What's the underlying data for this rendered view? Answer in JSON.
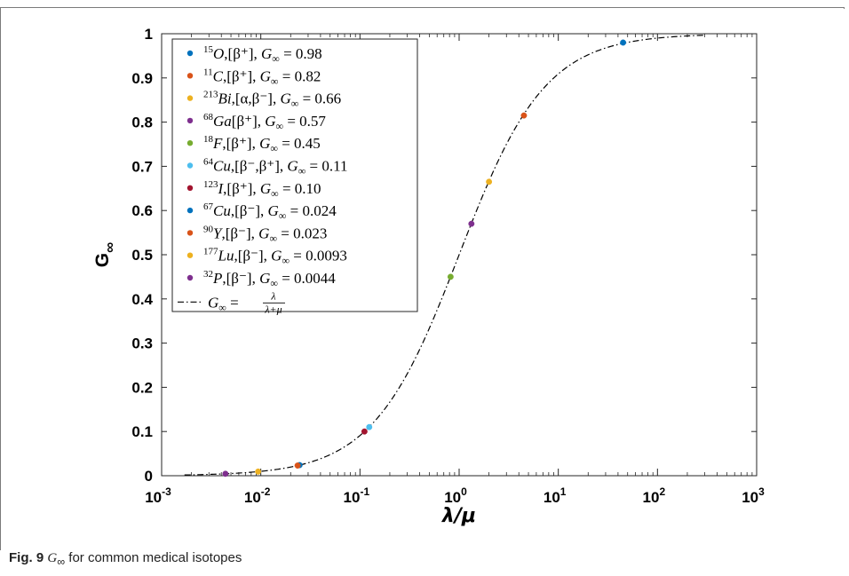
{
  "caption": {
    "fig_label": "Fig. 9",
    "symbol": "G",
    "symbol_sub": "∞",
    "text": " for common medical isotopes"
  },
  "chart_data": {
    "type": "scatter",
    "xscale": "log",
    "xlim": [
      0.001,
      1000
    ],
    "ylim": [
      0,
      1
    ],
    "xlabel": "λ/μ",
    "ylabel": "G",
    "ylabel_sub": "∞",
    "x_ticks": [
      {
        "value": 0.001,
        "base": "10",
        "exp": "-3"
      },
      {
        "value": 0.01,
        "base": "10",
        "exp": "-2"
      },
      {
        "value": 0.1,
        "base": "10",
        "exp": "-1"
      },
      {
        "value": 1,
        "base": "10",
        "exp": "0"
      },
      {
        "value": 10,
        "base": "10",
        "exp": "1"
      },
      {
        "value": 100,
        "base": "10",
        "exp": "2"
      },
      {
        "value": 1000,
        "base": "10",
        "exp": "3"
      }
    ],
    "y_ticks": [
      {
        "value": 0,
        "label": "0"
      },
      {
        "value": 0.1,
        "label": "0.1"
      },
      {
        "value": 0.2,
        "label": "0.2"
      },
      {
        "value": 0.3,
        "label": "0.3"
      },
      {
        "value": 0.4,
        "label": "0.4"
      },
      {
        "value": 0.5,
        "label": "0.5"
      },
      {
        "value": 0.6,
        "label": "0.6"
      },
      {
        "value": 0.7,
        "label": "0.7"
      },
      {
        "value": 0.8,
        "label": "0.8"
      },
      {
        "value": 0.9,
        "label": "0.9"
      },
      {
        "value": 1,
        "label": "1"
      }
    ],
    "grid": false,
    "legend_position": "top-left",
    "series": [
      {
        "name": "15O, [β+], G∞ = 0.98",
        "mass": "15",
        "sym": "O",
        "decay": ",[β⁺],",
        "value": "0.98",
        "color": "#0072BD",
        "x": 45.0,
        "y": 0.98
      },
      {
        "name": "11C, [β+], G∞ = 0.82",
        "mass": "11",
        "sym": "C",
        "decay": ",[β⁺],",
        "value": "0.82",
        "color": "#D95319",
        "x": 4.5,
        "y": 0.815
      },
      {
        "name": "213Bi, [α, β−], G∞ = 0.66",
        "mass": "213",
        "sym": "Bi",
        "decay": ",[α,β⁻],",
        "value": "0.66",
        "color": "#EDB120",
        "x": 2.0,
        "y": 0.665
      },
      {
        "name": "68Ga[β+], G∞ = 0.57",
        "mass": "68",
        "sym": "Ga",
        "decay": "[β⁺],",
        "value": "0.57",
        "color": "#7E2F8E",
        "x": 1.33,
        "y": 0.57
      },
      {
        "name": "18F, [β+], G∞ = 0.45",
        "mass": "18",
        "sym": "F",
        "decay": ",[β⁺],",
        "value": "0.45",
        "color": "#77AC30",
        "x": 0.82,
        "y": 0.45
      },
      {
        "name": "64Cu, [β−, β+], G∞ = 0.11",
        "mass": "64",
        "sym": "Cu",
        "decay": ",[β⁻,β⁺],",
        "value": "0.11",
        "color": "#4DBEEE",
        "x": 0.124,
        "y": 0.11
      },
      {
        "name": "123I, [β+], G∞ = 0.10",
        "mass": "123",
        "sym": "I",
        "decay": ",[β⁺],",
        "value": "0.10",
        "color": "#A2142F",
        "x": 0.111,
        "y": 0.1
      },
      {
        "name": "67Cu, [β−], G∞ = 0.024",
        "mass": "67",
        "sym": "Cu",
        "decay": ",[β⁻],",
        "value": "0.024",
        "color": "#0072BD",
        "x": 0.0246,
        "y": 0.024
      },
      {
        "name": "90Y, [β−], G∞ = 0.023",
        "mass": "90",
        "sym": "Y",
        "decay": ",[β⁻],",
        "value": "0.023",
        "color": "#D95319",
        "x": 0.0235,
        "y": 0.023
      },
      {
        "name": "177Lu, [β−], G∞ = 0.0093",
        "mass": "177",
        "sym": "Lu",
        "decay": ",[β⁻],",
        "value": "0.0093",
        "color": "#EDB120",
        "x": 0.0094,
        "y": 0.0093
      },
      {
        "name": "32P, [β−], G∞ = 0.0044",
        "mass": "32",
        "sym": "P",
        "decay": ",[β⁻],",
        "value": "0.0044",
        "color": "#7E2F8E",
        "x": 0.0044,
        "y": 0.0044
      }
    ],
    "curve": {
      "name": "G∞ = λ/(λ+μ)",
      "formula_lhs": "G",
      "formula_sub": "∞",
      "formula_eq": "=",
      "formula_num": "λ",
      "formula_den": "λ+μ",
      "style": "dash-dot",
      "color": "#000000",
      "x_range": [
        0.0017,
        300
      ]
    }
  }
}
